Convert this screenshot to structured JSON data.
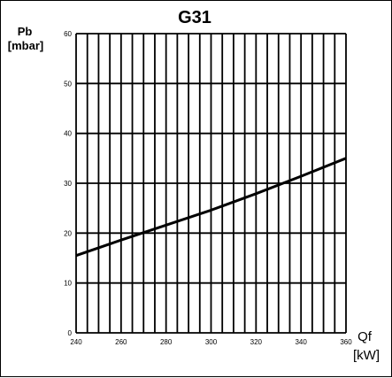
{
  "chart_data": {
    "type": "line",
    "title": "G31",
    "ylabel": "Pb",
    "ylabel_unit": "[mbar]",
    "xlabel": "Qf",
    "xlabel_unit": "[kW]",
    "xlim": [
      240,
      360
    ],
    "ylim": [
      0,
      60
    ],
    "x_ticks": [
      240,
      260,
      280,
      300,
      320,
      340,
      360
    ],
    "y_ticks": [
      0,
      10,
      20,
      30,
      40,
      50,
      60
    ],
    "x_minor_step": 5,
    "grid": true,
    "series": [
      {
        "x": [
          240,
          260,
          280,
          300,
          320,
          340,
          360
        ],
        "y": [
          15.5,
          18.6,
          21.6,
          24.6,
          27.9,
          31.4,
          35.0
        ]
      }
    ],
    "colors": {
      "line": "#000000",
      "grid": "#000000"
    }
  }
}
